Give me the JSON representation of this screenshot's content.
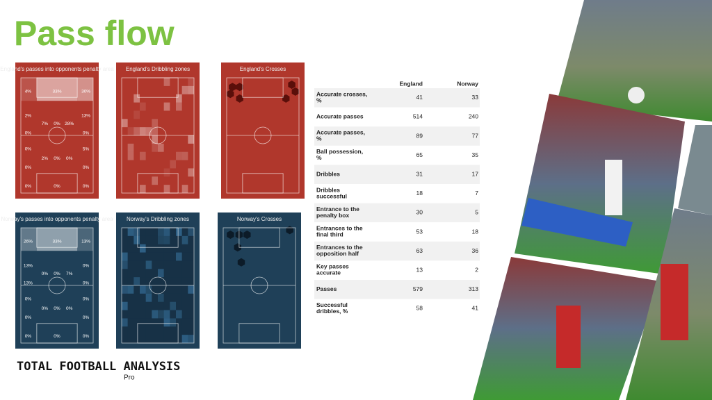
{
  "header": {
    "title": "Pass flow"
  },
  "panels": [
    {
      "title": "England's passes into opponents penalty area",
      "labels": [
        "4%",
        "33%",
        "30%",
        "2%",
        "13%",
        "7%",
        "0%",
        "28%",
        "0%",
        "0%",
        "0%",
        "5%",
        "2%",
        "0%",
        "0%",
        "0%",
        "0%",
        "0%",
        "0%",
        "0%"
      ]
    },
    {
      "title": "England's Dribbling zones"
    },
    {
      "title": "England's Crosses"
    },
    {
      "title": "Norway's passes into opponents penalty area",
      "labels": [
        "26%",
        "33%",
        "13%",
        "13%",
        "0%",
        "0%",
        "0%",
        "7%",
        "13%",
        "0%",
        "0%",
        "0%",
        "0%",
        "0%",
        "0%",
        "0%",
        "0%",
        "0%",
        "0%",
        "0%"
      ]
    },
    {
      "title": "Norway's Dribbling zones"
    },
    {
      "title": "Norway's Crosses"
    }
  ],
  "table": {
    "columns": [
      "England",
      "Norway"
    ],
    "rows": [
      [
        "Accurate crosses, %",
        41,
        33
      ],
      [
        "Accurate passes",
        514,
        240
      ],
      [
        "Accurate passes, %",
        89,
        77
      ],
      [
        "Ball possession, %",
        65,
        35
      ],
      [
        "Dribbles",
        31,
        17
      ],
      [
        "Dribbles successful",
        18,
        7
      ],
      [
        "Entrance to the penalty box",
        30,
        5
      ],
      [
        "Entrances to the final third",
        53,
        18
      ],
      [
        "Entrances to the opposition half",
        63,
        36
      ],
      [
        "Key passes accurate",
        13,
        2
      ],
      [
        "Passes",
        579,
        313
      ],
      [
        "Successful dribbles, %",
        58,
        41
      ]
    ]
  },
  "logo": {
    "name": "TOTAL FOOTBALL ANALYSIS",
    "tag": "Pro"
  }
}
